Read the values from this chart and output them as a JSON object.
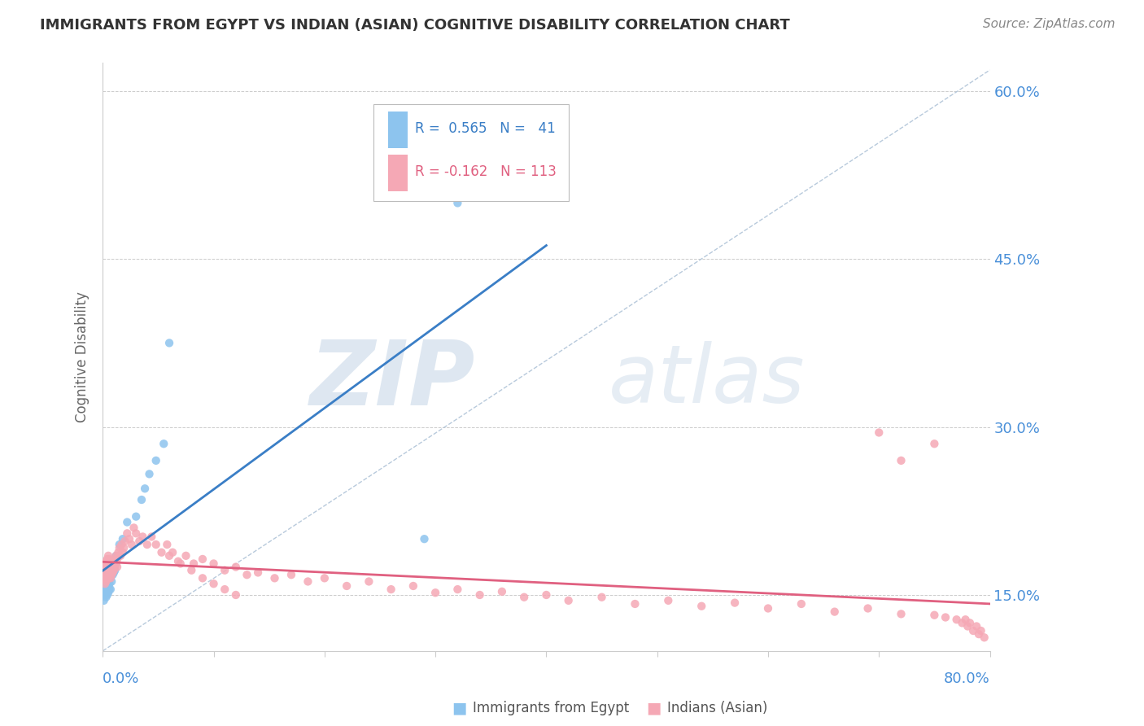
{
  "title": "IMMIGRANTS FROM EGYPT VS INDIAN (ASIAN) COGNITIVE DISABILITY CORRELATION CHART",
  "source": "Source: ZipAtlas.com",
  "ylabel": "Cognitive Disability",
  "xlim": [
    0.0,
    0.8
  ],
  "ylim": [
    0.1,
    0.625
  ],
  "ytick_vals": [
    0.15,
    0.3,
    0.45,
    0.6
  ],
  "ytick_labels": [
    "15.0%",
    "30.0%",
    "45.0%",
    "60.0%"
  ],
  "color_egypt": "#8DC4EE",
  "color_indian": "#F5A8B5",
  "color_egypt_line": "#3A7EC6",
  "color_indian_line": "#E06080",
  "color_ref_line": "#B0C4D8",
  "background_color": "#FFFFFF",
  "egypt_x": [
    0.001,
    0.001,
    0.002,
    0.002,
    0.002,
    0.002,
    0.003,
    0.003,
    0.003,
    0.003,
    0.003,
    0.003,
    0.004,
    0.004,
    0.004,
    0.004,
    0.005,
    0.005,
    0.005,
    0.006,
    0.006,
    0.007,
    0.007,
    0.008,
    0.009,
    0.01,
    0.01,
    0.011,
    0.012,
    0.015,
    0.018,
    0.022,
    0.03,
    0.035,
    0.038,
    0.042,
    0.048,
    0.055,
    0.06,
    0.29,
    0.32
  ],
  "egypt_y": [
    0.145,
    0.15,
    0.155,
    0.158,
    0.162,
    0.165,
    0.148,
    0.152,
    0.156,
    0.16,
    0.163,
    0.168,
    0.15,
    0.155,
    0.16,
    0.165,
    0.152,
    0.158,
    0.163,
    0.155,
    0.16,
    0.155,
    0.165,
    0.162,
    0.168,
    0.17,
    0.175,
    0.172,
    0.185,
    0.195,
    0.2,
    0.215,
    0.22,
    0.235,
    0.245,
    0.258,
    0.27,
    0.285,
    0.375,
    0.2,
    0.5
  ],
  "indian_x": [
    0.001,
    0.001,
    0.001,
    0.002,
    0.002,
    0.002,
    0.002,
    0.003,
    0.003,
    0.003,
    0.003,
    0.004,
    0.004,
    0.004,
    0.004,
    0.005,
    0.005,
    0.005,
    0.005,
    0.006,
    0.006,
    0.006,
    0.007,
    0.007,
    0.007,
    0.008,
    0.008,
    0.009,
    0.009,
    0.01,
    0.01,
    0.011,
    0.011,
    0.012,
    0.012,
    0.013,
    0.013,
    0.014,
    0.015,
    0.016,
    0.017,
    0.018,
    0.019,
    0.02,
    0.022,
    0.024,
    0.026,
    0.028,
    0.03,
    0.033,
    0.036,
    0.04,
    0.044,
    0.048,
    0.053,
    0.058,
    0.063,
    0.068,
    0.075,
    0.082,
    0.09,
    0.1,
    0.11,
    0.12,
    0.13,
    0.14,
    0.155,
    0.17,
    0.185,
    0.2,
    0.22,
    0.24,
    0.26,
    0.28,
    0.3,
    0.32,
    0.34,
    0.36,
    0.38,
    0.4,
    0.42,
    0.45,
    0.48,
    0.51,
    0.54,
    0.57,
    0.6,
    0.63,
    0.66,
    0.69,
    0.72,
    0.75,
    0.76,
    0.77,
    0.775,
    0.778,
    0.78,
    0.782,
    0.785,
    0.788,
    0.79,
    0.792,
    0.795,
    0.06,
    0.07,
    0.08,
    0.09,
    0.1,
    0.11,
    0.12,
    0.7,
    0.72,
    0.75
  ],
  "indian_y": [
    0.165,
    0.17,
    0.175,
    0.16,
    0.168,
    0.172,
    0.178,
    0.162,
    0.168,
    0.173,
    0.18,
    0.165,
    0.17,
    0.175,
    0.182,
    0.165,
    0.17,
    0.178,
    0.185,
    0.168,
    0.175,
    0.182,
    0.165,
    0.172,
    0.18,
    0.168,
    0.175,
    0.17,
    0.178,
    0.172,
    0.18,
    0.175,
    0.182,
    0.178,
    0.185,
    0.175,
    0.182,
    0.188,
    0.192,
    0.185,
    0.195,
    0.188,
    0.192,
    0.198,
    0.205,
    0.2,
    0.195,
    0.21,
    0.205,
    0.198,
    0.202,
    0.195,
    0.202,
    0.195,
    0.188,
    0.195,
    0.188,
    0.18,
    0.185,
    0.178,
    0.182,
    0.178,
    0.172,
    0.175,
    0.168,
    0.17,
    0.165,
    0.168,
    0.162,
    0.165,
    0.158,
    0.162,
    0.155,
    0.158,
    0.152,
    0.155,
    0.15,
    0.153,
    0.148,
    0.15,
    0.145,
    0.148,
    0.142,
    0.145,
    0.14,
    0.143,
    0.138,
    0.142,
    0.135,
    0.138,
    0.133,
    0.132,
    0.13,
    0.128,
    0.125,
    0.128,
    0.122,
    0.125,
    0.118,
    0.122,
    0.115,
    0.118,
    0.112,
    0.185,
    0.178,
    0.172,
    0.165,
    0.16,
    0.155,
    0.15,
    0.295,
    0.27,
    0.285
  ]
}
